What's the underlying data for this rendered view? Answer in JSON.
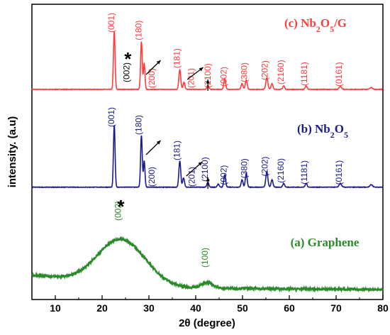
{
  "chart_data": {
    "type": "line",
    "xlabel": "2θ (degree)",
    "ylabel": "intensity. (a.u)",
    "xlim": [
      5,
      80
    ],
    "xticks": [
      10,
      20,
      30,
      40,
      50,
      60,
      70,
      80
    ],
    "grid": false,
    "series": [
      {
        "name": "(c) Nb2O5/G",
        "label_parts": [
          {
            "t": "(c) Nb",
            "sub": false
          },
          {
            "t": "2",
            "sub": true
          },
          {
            "t": "O",
            "sub": false
          },
          {
            "t": "5",
            "sub": true
          },
          {
            "t": "/G",
            "sub": false
          }
        ],
        "color": "#ff3b3b",
        "baseline": 0.05,
        "noise": 0.004,
        "peaks": [
          [
            22.6,
            1.0,
            0.17
          ],
          [
            28.4,
            0.82,
            0.18
          ],
          [
            29.0,
            0.45,
            0.16
          ],
          [
            36.6,
            0.34,
            0.2
          ],
          [
            37.5,
            0.12,
            0.2
          ],
          [
            42.6,
            0.07,
            0.2
          ],
          [
            46.2,
            0.18,
            0.2
          ],
          [
            49.9,
            0.1,
            0.2
          ],
          [
            50.8,
            0.16,
            0.2
          ],
          [
            55.2,
            0.2,
            0.22
          ],
          [
            56.3,
            0.1,
            0.2
          ],
          [
            58.8,
            0.06,
            0.2
          ],
          [
            63.6,
            0.06,
            0.2
          ],
          [
            70.9,
            0.05,
            0.25
          ],
          [
            77.5,
            0.03,
            0.3
          ]
        ],
        "peak_labels": [
          {
            "text": "(001)",
            "x": 22.6,
            "color": "#ff3b3b"
          },
          {
            "text": "(180)",
            "x": 28.4,
            "color": "#ff3b3b"
          },
          {
            "text": "(002)",
            "x": 25.8,
            "color": "#000000"
          },
          {
            "text": "(200)",
            "x": 31.2,
            "color": "#ff3b3b"
          },
          {
            "text": "(181)",
            "x": 36.6,
            "color": "#ff3b3b"
          },
          {
            "text": "(201)",
            "x": 39.6,
            "color": "#ff3b3b"
          },
          {
            "text": "(2100)",
            "x": 43.2,
            "color": "#ff3b3b"
          },
          {
            "text": "(002)",
            "x": 46.6,
            "color": "#ff3b3b"
          },
          {
            "text": "(380)",
            "x": 51.0,
            "color": "#ff3b3b"
          },
          {
            "text": "(202)",
            "x": 55.4,
            "color": "#ff3b3b"
          },
          {
            "text": "(2160)",
            "x": 58.8,
            "color": "#ff3b3b"
          },
          {
            "text": "(1181)",
            "x": 63.8,
            "color": "#ff3b3b"
          },
          {
            "text": "(0161)",
            "x": 71.2,
            "color": "#ff3b3b"
          }
        ]
      },
      {
        "name": "(b) Nb2O5",
        "label_parts": [
          {
            "t": "(b) Nb",
            "sub": false
          },
          {
            "t": "2",
            "sub": true
          },
          {
            "t": "O",
            "sub": false
          },
          {
            "t": "5",
            "sub": true
          }
        ],
        "color": "#1a1a8c",
        "baseline": 0.06,
        "noise": 0.004,
        "peaks": [
          [
            22.6,
            1.0,
            0.17
          ],
          [
            28.4,
            0.83,
            0.18
          ],
          [
            29.0,
            0.42,
            0.16
          ],
          [
            36.6,
            0.42,
            0.2
          ],
          [
            37.4,
            0.15,
            0.2
          ],
          [
            42.6,
            0.08,
            0.2
          ],
          [
            44.8,
            0.05,
            0.2
          ],
          [
            46.2,
            0.2,
            0.2
          ],
          [
            49.9,
            0.12,
            0.2
          ],
          [
            50.8,
            0.22,
            0.2
          ],
          [
            55.2,
            0.25,
            0.22
          ],
          [
            56.3,
            0.12,
            0.2
          ],
          [
            58.8,
            0.06,
            0.2
          ],
          [
            63.6,
            0.06,
            0.2
          ],
          [
            70.9,
            0.06,
            0.25
          ],
          [
            77.5,
            0.04,
            0.3
          ]
        ],
        "peak_labels": [
          {
            "text": "(001)",
            "x": 22.6,
            "color": "#1a1a8c"
          },
          {
            "text": "(180)",
            "x": 28.4,
            "color": "#1a1a8c"
          },
          {
            "text": "(200)",
            "x": 31.2,
            "color": "#1a1a8c"
          },
          {
            "text": "(181)",
            "x": 36.6,
            "color": "#1a1a8c"
          },
          {
            "text": "(201)",
            "x": 39.8,
            "color": "#1a1a8c"
          },
          {
            "text": "(2100)",
            "x": 42.6,
            "color": "#1a1a8c"
          },
          {
            "text": "(002)",
            "x": 46.6,
            "color": "#1a1a8c"
          },
          {
            "text": "(380)",
            "x": 51.0,
            "color": "#1a1a8c"
          },
          {
            "text": "(202)",
            "x": 55.4,
            "color": "#1a1a8c"
          },
          {
            "text": "(2160)",
            "x": 58.8,
            "color": "#1a1a8c"
          },
          {
            "text": "(1181)",
            "x": 63.8,
            "color": "#1a1a8c"
          },
          {
            "text": "(0161)",
            "x": 71.2,
            "color": "#1a1a8c"
          }
        ]
      },
      {
        "name": "(a) Graphene",
        "label_parts": [
          {
            "t": "(a) Graphene",
            "sub": false
          }
        ],
        "color": "#2a8a2a",
        "baseline": 0.0,
        "noise": 0.018,
        "broad": true,
        "peaks": [
          [
            24.0,
            1.0,
            5.2
          ],
          [
            42.5,
            0.12,
            1.2
          ]
        ],
        "peak_labels": [
          {
            "text": "(002)",
            "x": 24.0,
            "color": "#2a8a2a"
          },
          {
            "text": "(100)",
            "x": 42.6,
            "color": "#2a8a2a"
          }
        ]
      }
    ],
    "markers": [
      {
        "text": "*",
        "x": 25.5,
        "series": "(c) Nb2O5/G"
      },
      {
        "text": "*",
        "x": 24.0,
        "series": "(a) Graphene"
      }
    ]
  }
}
